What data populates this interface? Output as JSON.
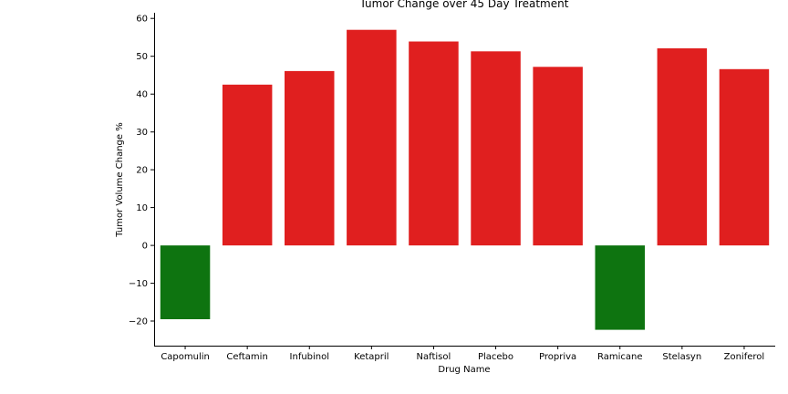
{
  "chart_data": {
    "type": "bar",
    "title": "Tumor Change over 45 Day Treatment",
    "xlabel": "Drug Name",
    "ylabel": "Tumor Volume Change %",
    "categories": [
      "Capomulin",
      "Ceftamin",
      "Infubinol",
      "Ketapril",
      "Naftisol",
      "Placebo",
      "Propriva",
      "Ramicane",
      "Stelasyn",
      "Zoniferol"
    ],
    "values": [
      -19.5,
      42.5,
      46.1,
      57.0,
      53.9,
      51.3,
      47.2,
      -22.3,
      52.1,
      46.6
    ],
    "ylim": [
      -26.5,
      61.5
    ],
    "yticks": [
      60,
      50,
      40,
      30,
      20,
      10,
      0,
      -10,
      -20
    ],
    "ytick_labels": [
      "60",
      "50",
      "40",
      "30",
      "20",
      "10",
      "0",
      "−10",
      "−20"
    ],
    "colors": {
      "positive": "#e01f1f",
      "negative": "#0e7410"
    },
    "grid": false
  }
}
